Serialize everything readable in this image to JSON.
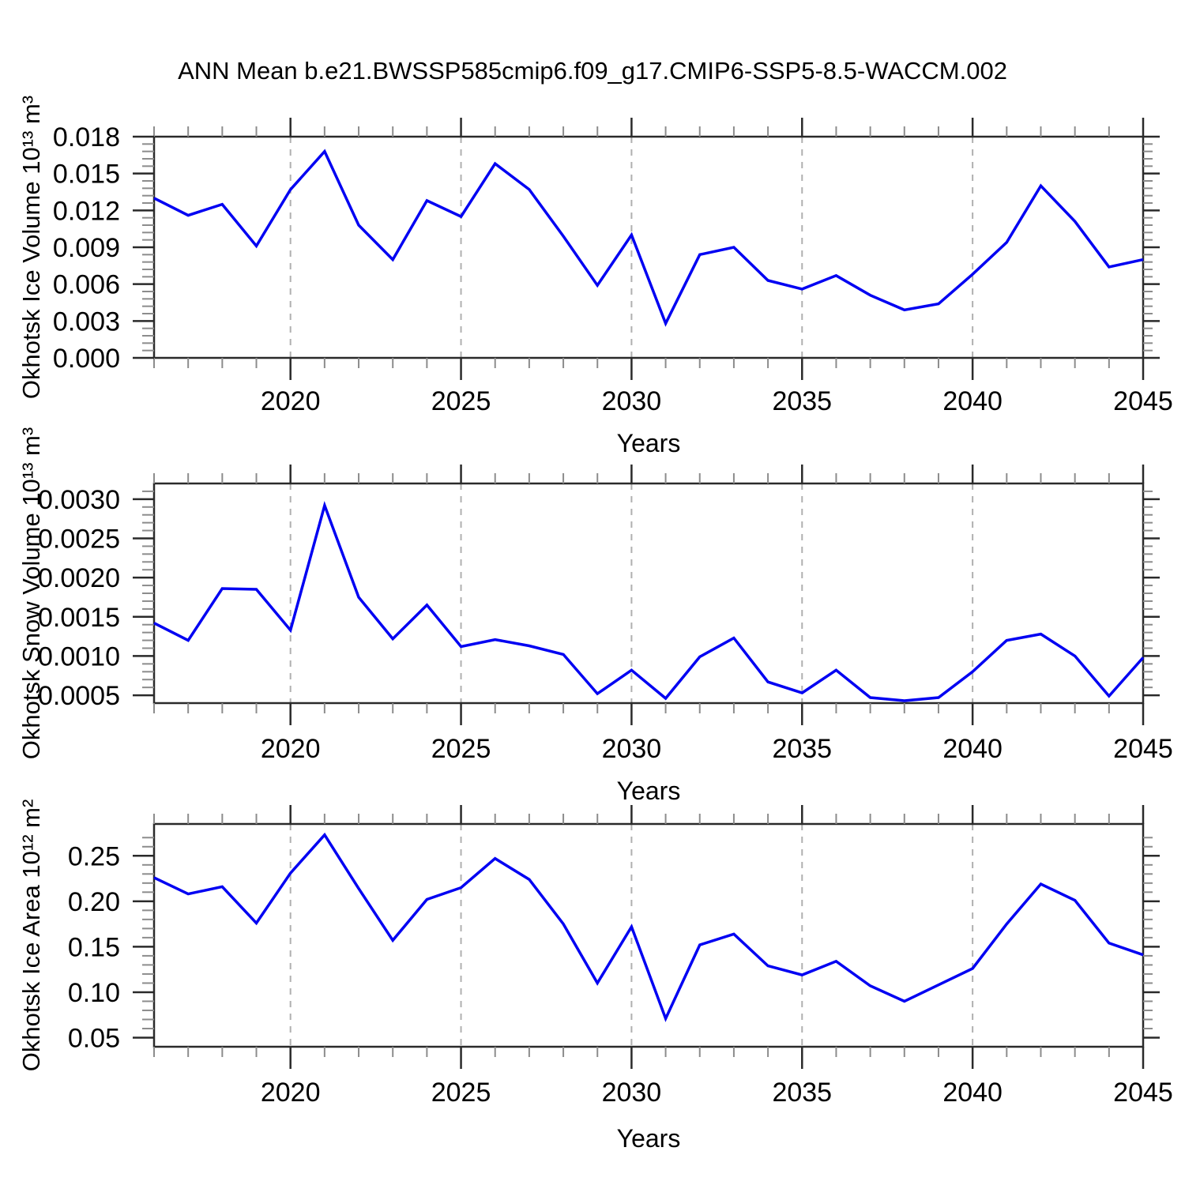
{
  "title": "ANN Mean b.e21.BWSSP585cmip6.f09_g17.CMIP6-SSP5-8.5-WACCM.002",
  "colors": {
    "line": "#0000f2",
    "frame": "#2a2a2a",
    "minor_tick": "#8c8c8c",
    "gridline": "#b0b0b0",
    "background": "#ffffff"
  },
  "chart_data": [
    {
      "type": "line",
      "ylabel": "Okhotsk Ice Volume 10¹³ m³",
      "xlabel": "Years",
      "x": [
        2016,
        2017,
        2018,
        2019,
        2020,
        2021,
        2022,
        2023,
        2024,
        2025,
        2026,
        2027,
        2028,
        2029,
        2030,
        2031,
        2032,
        2033,
        2034,
        2035,
        2036,
        2037,
        2038,
        2039,
        2040,
        2041,
        2042,
        2043,
        2044,
        2045
      ],
      "values": [
        0.013,
        0.0116,
        0.0125,
        0.0091,
        0.0137,
        0.0168,
        0.0108,
        0.008,
        0.0128,
        0.0115,
        0.0158,
        0.0137,
        0.0099,
        0.0059,
        0.01,
        0.0028,
        0.0084,
        0.009,
        0.0063,
        0.0056,
        0.0067,
        0.0051,
        0.0039,
        0.0044,
        0.0068,
        0.0094,
        0.014,
        0.0111,
        0.0074,
        0.008
      ],
      "xlim": [
        2016,
        2045
      ],
      "ylim": [
        0.0,
        0.018
      ],
      "xtick_values": [
        2020,
        2025,
        2030,
        2035,
        2040,
        2045
      ],
      "xtick_labels": [
        "2020",
        "2025",
        "2030",
        "2035",
        "2040",
        "2045"
      ],
      "x_minor_step": 1,
      "ytick_values": [
        0.0,
        0.003,
        0.006,
        0.009,
        0.012,
        0.015,
        0.018
      ],
      "ytick_labels": [
        "0.000",
        "0.003",
        "0.006",
        "0.009",
        "0.012",
        "0.015",
        "0.018"
      ],
      "y_minor_step": 0.0006,
      "gridline_x": [
        2020,
        2025,
        2030,
        2035,
        2040
      ],
      "grid": "vertical-dashed",
      "legend": "none"
    },
    {
      "type": "line",
      "ylabel": "Okhotsk Snow Volume 10¹³ m³",
      "xlabel": "Years",
      "x": [
        2016,
        2017,
        2018,
        2019,
        2020,
        2021,
        2022,
        2023,
        2024,
        2025,
        2026,
        2027,
        2028,
        2029,
        2030,
        2031,
        2032,
        2033,
        2034,
        2035,
        2036,
        2037,
        2038,
        2039,
        2040,
        2041,
        2042,
        2043,
        2044,
        2045
      ],
      "values": [
        0.00142,
        0.0012,
        0.00186,
        0.00185,
        0.00133,
        0.00292,
        0.00175,
        0.00122,
        0.00165,
        0.00112,
        0.00121,
        0.00113,
        0.00102,
        0.00052,
        0.00082,
        0.00046,
        0.00099,
        0.00123,
        0.00067,
        0.00053,
        0.00082,
        0.00047,
        0.00043,
        0.00047,
        0.0008,
        0.0012,
        0.00128,
        0.001,
        0.00049,
        0.00098
      ],
      "xlim": [
        2016,
        2045
      ],
      "ylim": [
        0.0004,
        0.0032
      ],
      "xtick_values": [
        2020,
        2025,
        2030,
        2035,
        2040,
        2045
      ],
      "xtick_labels": [
        "2020",
        "2025",
        "2030",
        "2035",
        "2040",
        "2045"
      ],
      "x_minor_step": 1,
      "ytick_values": [
        0.0005,
        0.001,
        0.0015,
        0.002,
        0.0025,
        0.003
      ],
      "ytick_labels": [
        "0.0005",
        "0.0010",
        "0.0015",
        "0.0020",
        "0.0025",
        "0.0030"
      ],
      "y_minor_step": 0.0001,
      "gridline_x": [
        2020,
        2025,
        2030,
        2035,
        2040
      ],
      "grid": "vertical-dashed",
      "legend": "none"
    },
    {
      "type": "line",
      "ylabel": "Okhotsk Ice Area 10¹² m²",
      "xlabel": "Years",
      "x": [
        2016,
        2017,
        2018,
        2019,
        2020,
        2021,
        2022,
        2023,
        2024,
        2025,
        2026,
        2027,
        2028,
        2029,
        2030,
        2031,
        2032,
        2033,
        2034,
        2035,
        2036,
        2037,
        2038,
        2039,
        2040,
        2041,
        2042,
        2043,
        2044,
        2045
      ],
      "values": [
        0.226,
        0.208,
        0.216,
        0.176,
        0.231,
        0.273,
        0.214,
        0.157,
        0.202,
        0.215,
        0.247,
        0.224,
        0.175,
        0.11,
        0.172,
        0.071,
        0.152,
        0.164,
        0.129,
        0.119,
        0.134,
        0.107,
        0.09,
        0.108,
        0.126,
        0.175,
        0.219,
        0.201,
        0.154,
        0.141
      ],
      "xlim": [
        2016,
        2045
      ],
      "ylim": [
        0.04,
        0.285
      ],
      "xtick_values": [
        2020,
        2025,
        2030,
        2035,
        2040,
        2045
      ],
      "xtick_labels": [
        "2020",
        "2025",
        "2030",
        "2035",
        "2040",
        "2045"
      ],
      "x_minor_step": 1,
      "ytick_values": [
        0.05,
        0.1,
        0.15,
        0.2,
        0.25
      ],
      "ytick_labels": [
        "0.05",
        "0.10",
        "0.15",
        "0.20",
        "0.25"
      ],
      "y_minor_step": 0.01,
      "gridline_x": [
        2020,
        2025,
        2030,
        2035,
        2040
      ],
      "grid": "vertical-dashed",
      "legend": "none"
    }
  ]
}
